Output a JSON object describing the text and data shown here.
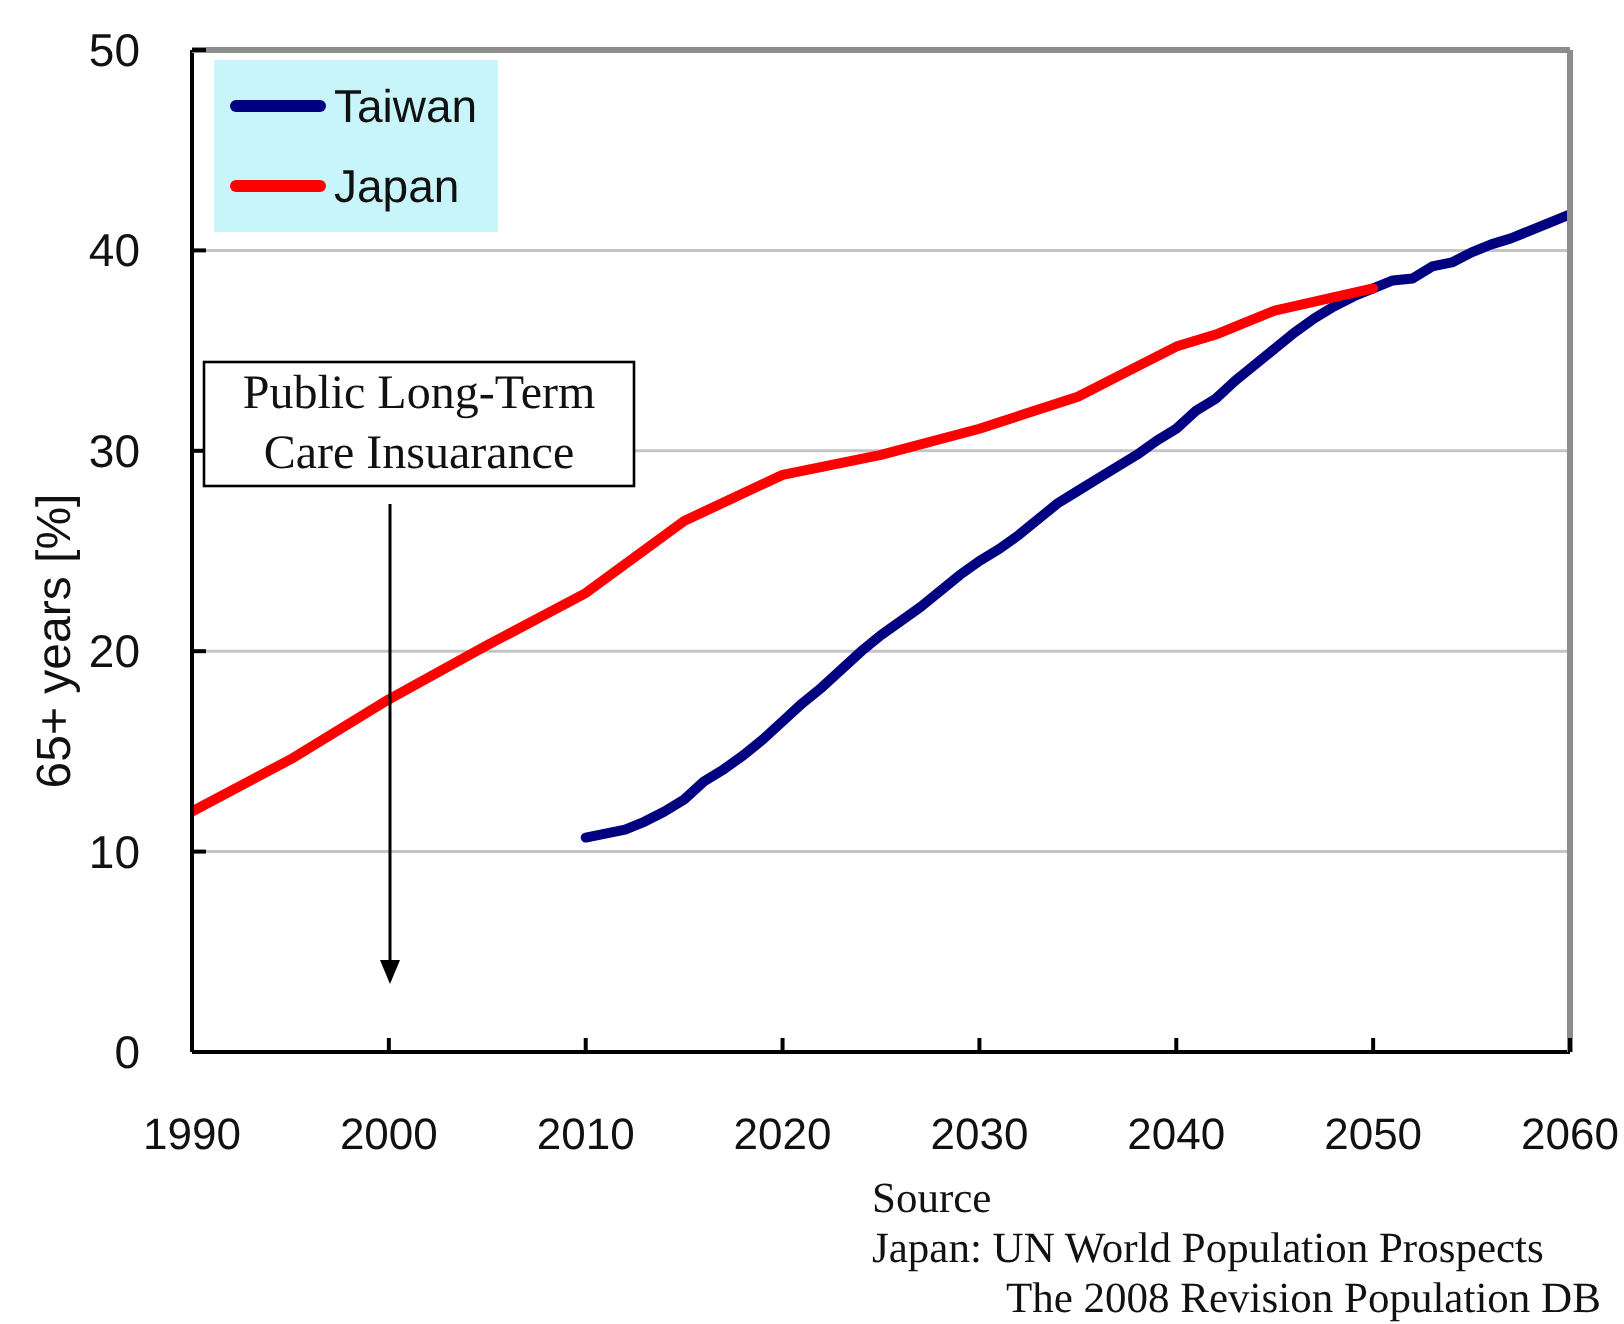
{
  "chart_data": {
    "type": "line",
    "ylabel": "65+ years [%]",
    "xlim": [
      1990,
      2060
    ],
    "xticks": [
      1990,
      2000,
      2010,
      2020,
      2030,
      2040,
      2050,
      2060
    ],
    "ylim": [
      0,
      50
    ],
    "yticks": [
      0,
      10,
      20,
      30,
      40,
      50
    ],
    "grid": "y",
    "legend": "top left",
    "series": [
      {
        "name": "Taiwan",
        "color": "#000080",
        "x": [
          2010,
          2011,
          2012,
          2013,
          2014,
          2015,
          2016,
          2017,
          2018,
          2019,
          2020,
          2021,
          2022,
          2023,
          2024,
          2025,
          2026,
          2027,
          2028,
          2029,
          2030,
          2031,
          2032,
          2033,
          2034,
          2035,
          2036,
          2037,
          2038,
          2039,
          2040,
          2041,
          2042,
          2043,
          2044,
          2045,
          2046,
          2047,
          2048,
          2049,
          2050,
          2051,
          2052,
          2053,
          2054,
          2055,
          2056,
          2057,
          2058,
          2059,
          2060
        ],
        "values": [
          10.7,
          10.9,
          11.1,
          11.5,
          12.0,
          12.6,
          13.5,
          14.1,
          14.8,
          15.6,
          16.5,
          17.4,
          18.2,
          19.1,
          20.0,
          20.8,
          21.5,
          22.2,
          23.0,
          23.8,
          24.5,
          25.1,
          25.8,
          26.6,
          27.4,
          28.0,
          28.6,
          29.2,
          29.8,
          30.5,
          31.1,
          32.0,
          32.6,
          33.5,
          34.3,
          35.1,
          35.9,
          36.6,
          37.2,
          37.7,
          38.1,
          38.5,
          38.6,
          39.2,
          39.4,
          39.9,
          40.3,
          40.6,
          41.0,
          41.4,
          41.8
        ]
      },
      {
        "name": "Japan",
        "color": "#ff0000",
        "x": [
          1990,
          1995,
          2000,
          2005,
          2010,
          2015,
          2020,
          2025,
          2030,
          2035,
          2037,
          2040,
          2042,
          2045,
          2050
        ],
        "values": [
          12.0,
          14.6,
          17.6,
          20.3,
          22.9,
          26.5,
          28.8,
          29.8,
          31.1,
          32.7,
          33.7,
          35.2,
          35.8,
          37.0,
          38.1
        ]
      }
    ],
    "annotations": [
      "Public Long-Term\nCare Insuarance",
      "Source",
      "Japan: UN World Population Prospects",
      "The 2008 Revision Population DB"
    ]
  }
}
